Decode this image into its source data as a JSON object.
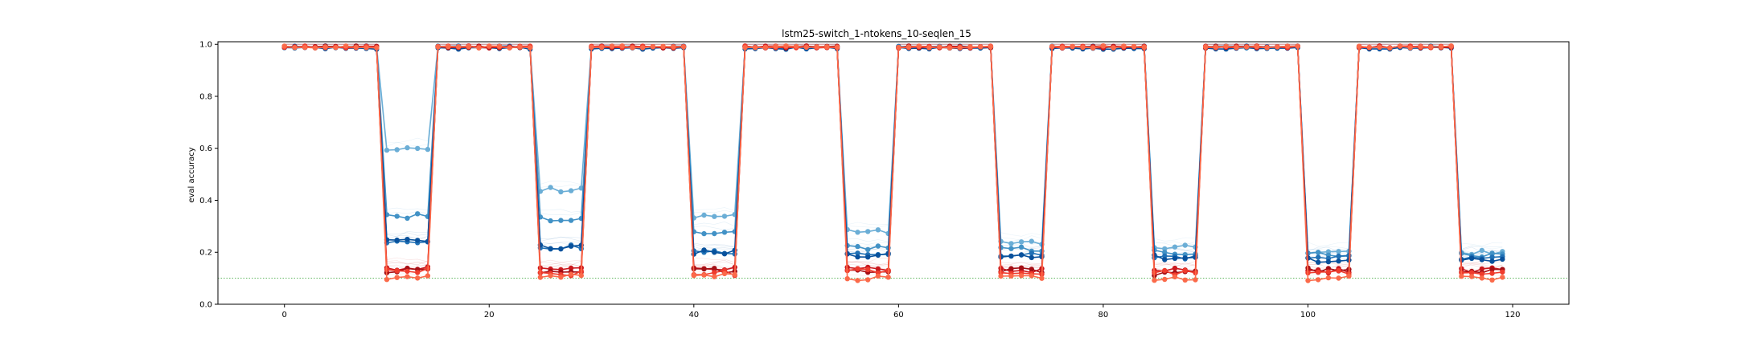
{
  "chart_data": {
    "type": "line",
    "title": "lstm25-switch_1-ntokens_10-seqlen_15",
    "xlabel": "",
    "ylabel": "eval accuracy",
    "xlim": [
      -6.5,
      125.5
    ],
    "ylim": [
      0.0,
      1.01
    ],
    "xticks": [
      0,
      20,
      40,
      60,
      80,
      100,
      120
    ],
    "yticks": [
      0.0,
      0.2,
      0.4,
      0.6,
      0.8,
      1.0
    ],
    "ytick_labels": [
      "0.0",
      "0.2",
      "0.4",
      "0.6",
      "0.8",
      "1.0"
    ],
    "grid": false,
    "legend": "none",
    "baseline": {
      "y": 0.1,
      "style": "dotted",
      "color": "#2ca02c"
    },
    "segments": {
      "high": [
        [
          0,
          9
        ],
        [
          15,
          24
        ],
        [
          30,
          39
        ],
        [
          45,
          54
        ],
        [
          60,
          69
        ],
        [
          75,
          84
        ],
        [
          90,
          99
        ],
        [
          105,
          114
        ]
      ],
      "low": [
        [
          10,
          14
        ],
        [
          25,
          29
        ],
        [
          40,
          44
        ],
        [
          55,
          59
        ],
        [
          70,
          74
        ],
        [
          85,
          89
        ],
        [
          100,
          104
        ],
        [
          115,
          119
        ]
      ]
    },
    "series": [
      {
        "color": "#6baed6",
        "high": 0.99,
        "low": [
          0.6,
          0.44,
          0.34,
          0.28,
          0.24,
          0.22,
          0.2,
          0.2
        ]
      },
      {
        "color": "#4292c6",
        "high": 0.99,
        "low": [
          0.34,
          0.33,
          0.28,
          0.22,
          0.21,
          0.2,
          0.19,
          0.19
        ]
      },
      {
        "color": "#2171b5",
        "high": 0.99,
        "low": [
          0.24,
          0.22,
          0.2,
          0.19,
          0.19,
          0.18,
          0.18,
          0.18
        ]
      },
      {
        "color": "#08519c",
        "high": 0.985,
        "low": [
          0.24,
          0.22,
          0.2,
          0.19,
          0.18,
          0.18,
          0.17,
          0.17
        ]
      },
      {
        "color": "#cb181d",
        "high": 0.99,
        "low": [
          0.14,
          0.14,
          0.14,
          0.14,
          0.13,
          0.13,
          0.13,
          0.13
        ]
      },
      {
        "color": "#a50f15",
        "high": 0.99,
        "low": [
          0.13,
          0.13,
          0.13,
          0.13,
          0.13,
          0.12,
          0.13,
          0.13
        ]
      },
      {
        "color": "#ef3b2c",
        "high": 0.99,
        "low": [
          0.13,
          0.12,
          0.12,
          0.13,
          0.12,
          0.12,
          0.12,
          0.12
        ]
      },
      {
        "color": "#fb6a4a",
        "high": 0.99,
        "low": [
          0.1,
          0.11,
          0.11,
          0.1,
          0.1,
          0.1,
          0.1,
          0.1
        ]
      }
    ]
  }
}
